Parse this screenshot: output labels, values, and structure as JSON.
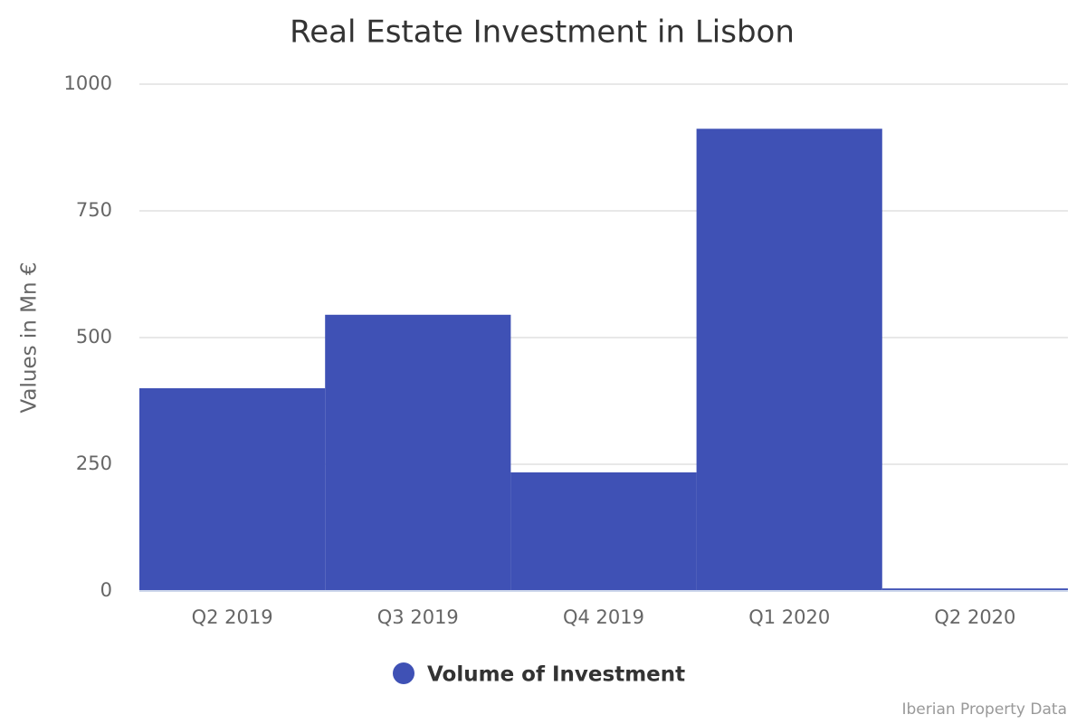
{
  "chart_data": {
    "type": "bar",
    "title": "Real Estate Investment in Lisbon",
    "y_label": "Values in Mn €",
    "credits": "Iberian Property Data",
    "categories": [
      "Q2 2019",
      "Q3 2019",
      "Q4 2019",
      "Q1 2020",
      "Q2 2020"
    ],
    "series": [
      {
        "name": "Volume of Investment",
        "color": "#3f51b5",
        "values": [
          400,
          545,
          234,
          912,
          5
        ]
      }
    ],
    "ylim": [
      0,
      1000
    ],
    "yticks": [
      0,
      250,
      500,
      750,
      1000
    ],
    "grid": true,
    "legend": "bottom"
  }
}
